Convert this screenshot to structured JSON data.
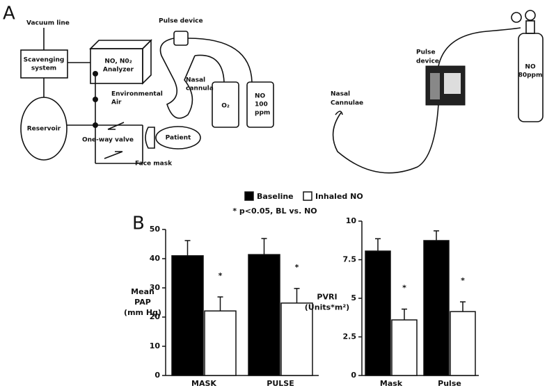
{
  "panel_a": {
    "label": "A",
    "left": {
      "vacuum_line": "Vacuum line",
      "scavenging": [
        "Scavenging",
        "system"
      ],
      "analyzer": [
        "NO, N0₂",
        "Analyzer"
      ],
      "pulse_device": "Pulse device",
      "nasal_cannula": [
        "Nasal",
        "cannula"
      ],
      "oxygen": "O₂",
      "no_tank": [
        "NO",
        "100",
        "ppm"
      ],
      "environmental_air": [
        "Environmental",
        "Air"
      ],
      "reservoir": "Reservoir",
      "valve": "One-way valve",
      "patient": "Patient",
      "face_mask": "Face mask"
    },
    "right": {
      "pulse_device": [
        "Pulse",
        "device"
      ],
      "nasal_cannulae": [
        "Nasal",
        "Cannulae"
      ],
      "no_cylinder": [
        "NO",
        "80ppm"
      ]
    }
  },
  "panel_b_label": "B",
  "chart_data": [
    {
      "type": "bar",
      "annotation": "* p<0.05, BL vs. NO",
      "ylabel": [
        "Mean",
        "PAP",
        "(mm Hg)"
      ],
      "categories": [
        "MASK",
        "PULSE"
      ],
      "series": [
        {
          "name": "Baseline",
          "color": "#000000",
          "values": [
            41,
            41.4
          ],
          "errors": [
            5.2,
            5.5
          ]
        },
        {
          "name": "Inhaled NO",
          "color": "#ffffff",
          "values": [
            22.1,
            24.8
          ],
          "errors": [
            4.8,
            5
          ]
        }
      ],
      "significance": [
        "*",
        "*"
      ],
      "ylim": [
        0,
        50
      ],
      "yticks": [
        0,
        10,
        20,
        30,
        40,
        50
      ]
    },
    {
      "type": "bar",
      "ylabel": [
        "PVRI",
        "(Units*m²)"
      ],
      "categories": [
        "Mask",
        "Pulse"
      ],
      "series": [
        {
          "color": "#000000",
          "values": [
            8.06,
            8.74
          ],
          "errors": [
            0.8,
            0.63
          ]
        },
        {
          "color": "#ffffff",
          "values": [
            3.6,
            4.14
          ],
          "errors": [
            0.7,
            0.63
          ]
        }
      ],
      "significance": [
        "*",
        "*"
      ],
      "ylim": [
        0,
        10
      ],
      "yticks": [
        0,
        2.5,
        5,
        7.5,
        10
      ]
    }
  ]
}
